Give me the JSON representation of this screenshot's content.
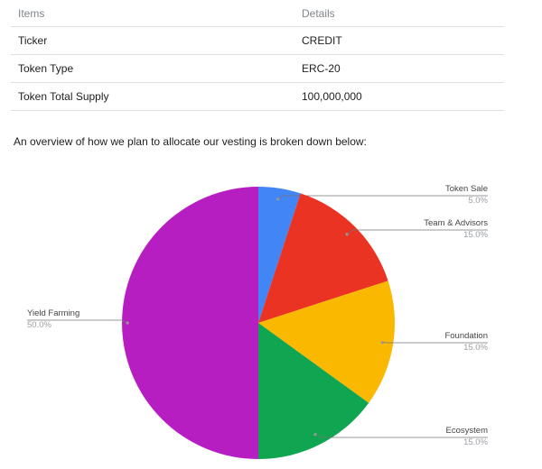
{
  "table": {
    "headers": [
      "Items",
      "Details"
    ],
    "rows": [
      [
        "Ticker",
        "CREDIT"
      ],
      [
        "Token Type",
        "ERC-20"
      ],
      [
        "Token Total Supply",
        "100,000,000"
      ]
    ]
  },
  "intro_text": "An overview of how we plan to allocate our vesting is broken down below:",
  "chart_data": {
    "type": "pie",
    "title": "",
    "legend": "none",
    "slices": [
      {
        "label": "Token Sale",
        "value": 5.0,
        "percent_label": "5.0%",
        "color": "#4285f4"
      },
      {
        "label": "Team & Advisors",
        "value": 15.0,
        "percent_label": "15.0%",
        "color": "#ea3323"
      },
      {
        "label": "Foundation",
        "value": 15.0,
        "percent_label": "15.0%",
        "color": "#fbb800"
      },
      {
        "label": "Ecosystem",
        "value": 15.0,
        "percent_label": "15.0%",
        "color": "#0fa551"
      },
      {
        "label": "Yield Farming",
        "value": 50.0,
        "percent_label": "50.0%",
        "color": "#b71ec2"
      }
    ]
  }
}
